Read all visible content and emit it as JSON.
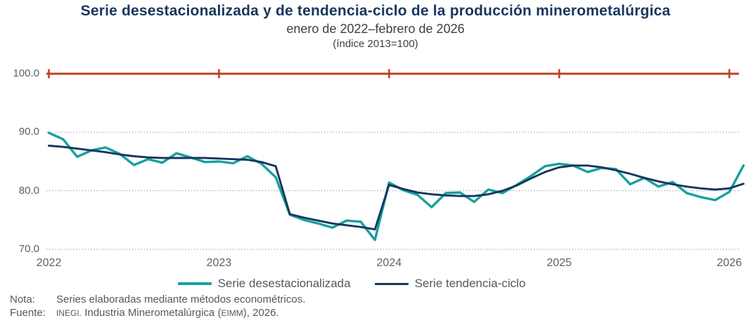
{
  "header": {
    "title": "Serie desestacionalizada y de tendencia-ciclo de la producción minerometalúrgica",
    "subtitle": "enero de 2022–febrero de 2026",
    "index_note": "(índice 2013=100)"
  },
  "chart_data": {
    "type": "line",
    "title": "Serie desestacionalizada y de tendencia-ciclo de la producción minerometalúrgica",
    "subtitle": "enero de 2022–febrero de 2026",
    "index_base": "índice 2013=100",
    "x_unit": "month",
    "x_range": [
      "2022-01",
      "2026-02"
    ],
    "x_tick_labels": [
      "2022",
      "2023",
      "2024",
      "2025",
      "2026"
    ],
    "y_tick_values": [
      100.0,
      90.0,
      80.0,
      70.0
    ],
    "y_tick_labels": [
      "100.0",
      "90.0",
      "80.0",
      "70.0"
    ],
    "ylim": [
      70,
      101
    ],
    "grid": "dotted horizontal at 90, 80, 70",
    "reference_line": {
      "value": 100.0,
      "color": "#C4401F",
      "tick_every": "year"
    },
    "legend_position": "bottom",
    "series": [
      {
        "name": "Serie desestacionalizada",
        "color": "#18A0A0",
        "values": [
          89.9,
          88.8,
          85.8,
          86.9,
          87.4,
          86.3,
          84.4,
          85.4,
          84.8,
          86.4,
          85.7,
          84.9,
          85.0,
          84.7,
          85.9,
          84.6,
          82.3,
          75.9,
          75.0,
          74.4,
          73.7,
          74.9,
          74.7,
          71.6,
          81.4,
          80.1,
          79.3,
          77.2,
          79.6,
          79.7,
          78.1,
          80.2,
          79.6,
          81.0,
          82.5,
          84.2,
          84.6,
          84.3,
          83.2,
          83.9,
          83.7,
          81.1,
          82.2,
          80.7,
          81.5,
          79.6,
          78.9,
          78.4,
          79.8,
          84.3
        ]
      },
      {
        "name": "Serie tendencia-ciclo",
        "color": "#17365D",
        "values": [
          87.7,
          87.5,
          87.2,
          86.9,
          86.6,
          86.2,
          85.9,
          85.7,
          85.6,
          85.6,
          85.6,
          85.6,
          85.5,
          85.4,
          85.3,
          84.9,
          84.2,
          76.0,
          75.4,
          74.9,
          74.4,
          74.1,
          73.8,
          73.4,
          81.0,
          80.3,
          79.7,
          79.4,
          79.2,
          79.1,
          79.1,
          79.4,
          80.0,
          80.9,
          82.1,
          83.2,
          84.0,
          84.3,
          84.3,
          84.0,
          83.5,
          82.9,
          82.2,
          81.6,
          81.1,
          80.7,
          80.4,
          80.2,
          80.4,
          81.2
        ]
      }
    ]
  },
  "footer": {
    "note_label": "Nota:",
    "note_text": "Series elaboradas mediante métodos econométricos.",
    "source_label": "Fuente:",
    "source_part1": "INEGI.",
    "source_part2": "Industria Minerometalúrgica (",
    "source_part3": "EIMM",
    "source_part4": "), 2026."
  },
  "colors": {
    "title": "#17375E",
    "reference_line": "#C4401F",
    "gridline": "#A8B2BD",
    "axis_text": "#5A6169",
    "series_desestacionalizada": "#18A0A0",
    "series_tendencia_ciclo": "#17365D"
  }
}
